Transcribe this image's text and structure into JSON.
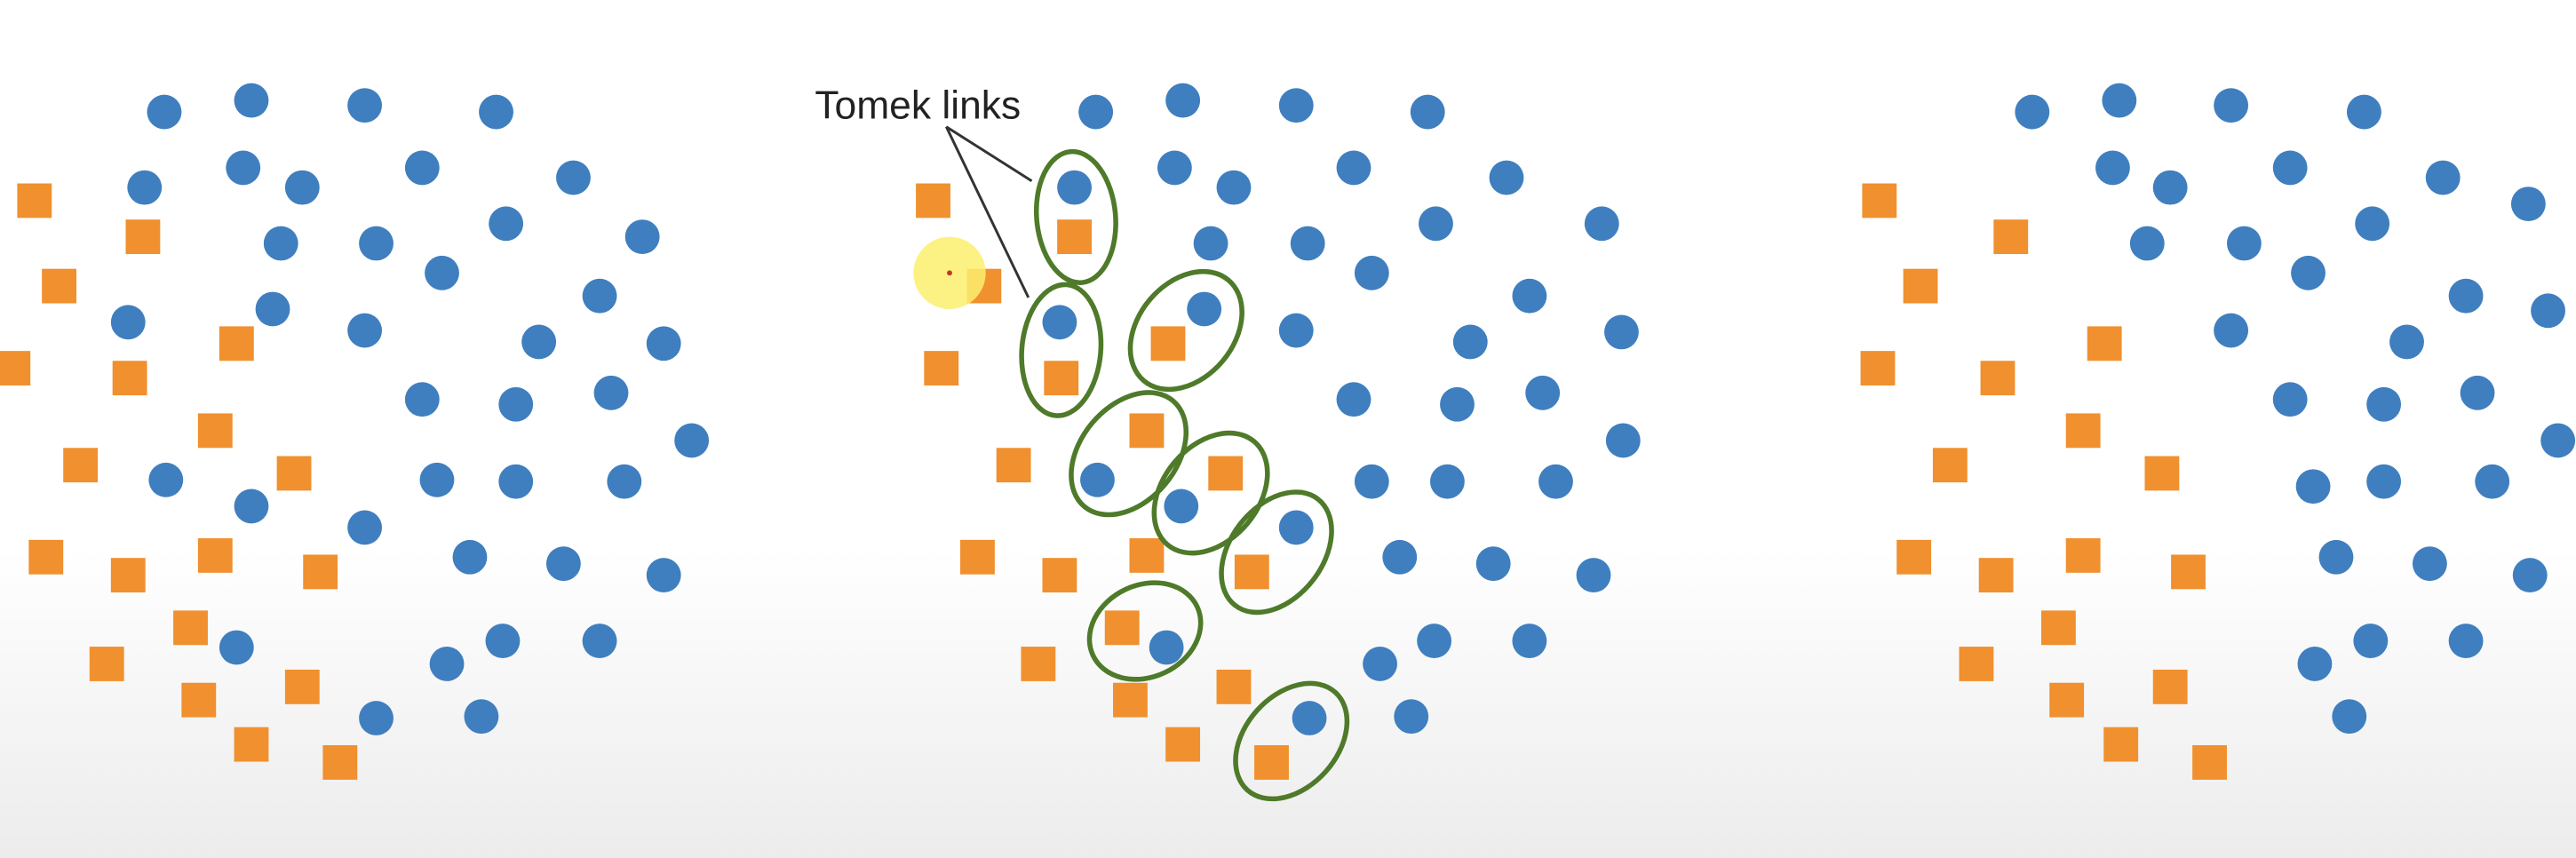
{
  "annotation": {
    "label": "Tomek links"
  },
  "colors": {
    "majority": "#3f7fbf",
    "minority": "#f0902e",
    "link_ring": "#4e7a2a",
    "cursor_highlight": "#fbf06e",
    "leader_line": "#333333"
  },
  "legend_semantics": {
    "majority_shape": "circle",
    "minority_shape": "square",
    "panels": [
      "original-dataset",
      "tomek-links-marked",
      "after-removal"
    ]
  }
}
